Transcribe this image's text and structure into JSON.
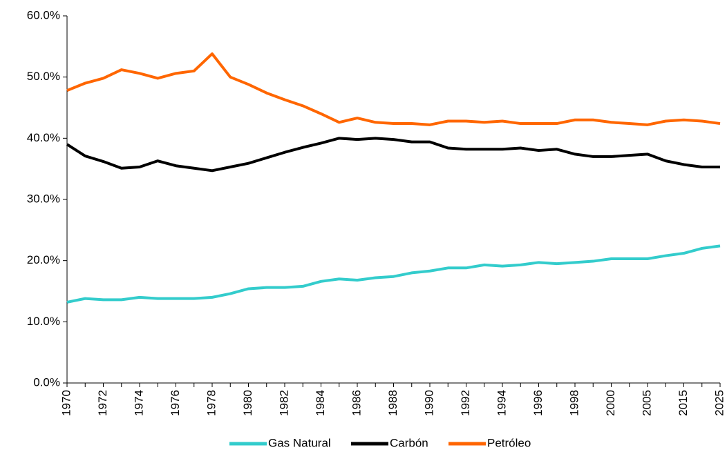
{
  "chart_data": {
    "type": "line",
    "categories": [
      "1970",
      null,
      "1972",
      null,
      "1974",
      null,
      "1976",
      null,
      "1978",
      null,
      "1980",
      null,
      "1982",
      null,
      "1984",
      null,
      "1986",
      null,
      "1988",
      null,
      "1990",
      null,
      "1992",
      null,
      "1994",
      null,
      "1996",
      null,
      "1998",
      null,
      "2000",
      null,
      "2005",
      null,
      "2015",
      null,
      "2025"
    ],
    "series": [
      {
        "name": "Gas Natural",
        "color": "#33cccc",
        "values": [
          13.2,
          13.8,
          13.6,
          13.6,
          14.0,
          13.8,
          13.8,
          13.8,
          14.0,
          14.6,
          15.4,
          15.6,
          15.6,
          15.8,
          16.6,
          17.0,
          16.8,
          17.2,
          17.4,
          18.0,
          18.3,
          18.8,
          18.8,
          19.3,
          19.1,
          19.3,
          19.7,
          19.5,
          19.7,
          19.9,
          20.3,
          20.3,
          20.3,
          20.8,
          21.2,
          22.0,
          22.4
        ]
      },
      {
        "name": "Carbón",
        "color": "#000000",
        "values": [
          39.0,
          37.1,
          36.2,
          35.1,
          35.3,
          36.3,
          35.5,
          35.1,
          34.7,
          35.3,
          35.9,
          36.8,
          37.7,
          38.5,
          39.2,
          40.0,
          39.8,
          40.0,
          39.8,
          39.4,
          39.4,
          38.4,
          38.2,
          38.2,
          38.2,
          38.4,
          38.0,
          38.2,
          37.4,
          37.0,
          37.0,
          37.2,
          37.4,
          36.3,
          35.7,
          35.3,
          35.3
        ]
      },
      {
        "name": "Petróleo",
        "color": "#ff6600",
        "values": [
          47.8,
          49.0,
          49.8,
          51.2,
          50.6,
          49.8,
          50.6,
          51.0,
          53.8,
          50.0,
          48.8,
          47.4,
          46.3,
          45.3,
          44.0,
          42.6,
          43.3,
          42.6,
          42.4,
          42.4,
          42.2,
          42.8,
          42.8,
          42.6,
          42.8,
          42.4,
          42.4,
          42.4,
          43.0,
          43.0,
          42.6,
          42.4,
          42.2,
          42.8,
          43.0,
          42.8,
          42.4
        ]
      }
    ],
    "ylim": [
      0,
      60
    ],
    "yticks": [
      {
        "value": 0,
        "label": "0.0%"
      },
      {
        "value": 10,
        "label": "10.0%"
      },
      {
        "value": 20,
        "label": "20.0%"
      },
      {
        "value": 30,
        "label": "30.0%"
      },
      {
        "value": 40,
        "label": "40.0%"
      },
      {
        "value": 50,
        "label": "50.0%"
      },
      {
        "value": 60,
        "label": "60.0%"
      }
    ],
    "legend": "bottom"
  }
}
